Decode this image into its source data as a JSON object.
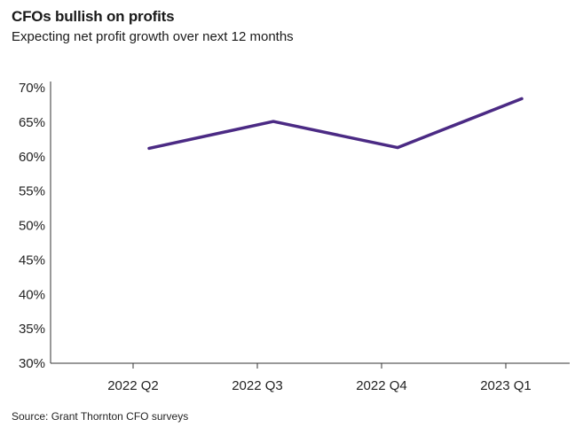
{
  "chart_data": {
    "type": "line",
    "title": "CFOs bullish on profits",
    "subtitle": "Expecting net profit growth over next 12 months",
    "categories": [
      "2022 Q2",
      "2022 Q3",
      "2022 Q4",
      "2023 Q1"
    ],
    "series": [
      {
        "name": "Expecting net profit growth",
        "values": [
          61.2,
          65.1,
          61.3,
          68.4
        ]
      }
    ],
    "yticks": [
      "70%",
      "65%",
      "60%",
      "55%",
      "50%",
      "45%",
      "40%",
      "35%",
      "30%"
    ],
    "ylim": [
      30,
      70
    ],
    "xlabel": "",
    "ylabel": "",
    "grid": false,
    "line_color": "#4b2a84",
    "source": "Source: Grant Thornton CFO surveys"
  }
}
